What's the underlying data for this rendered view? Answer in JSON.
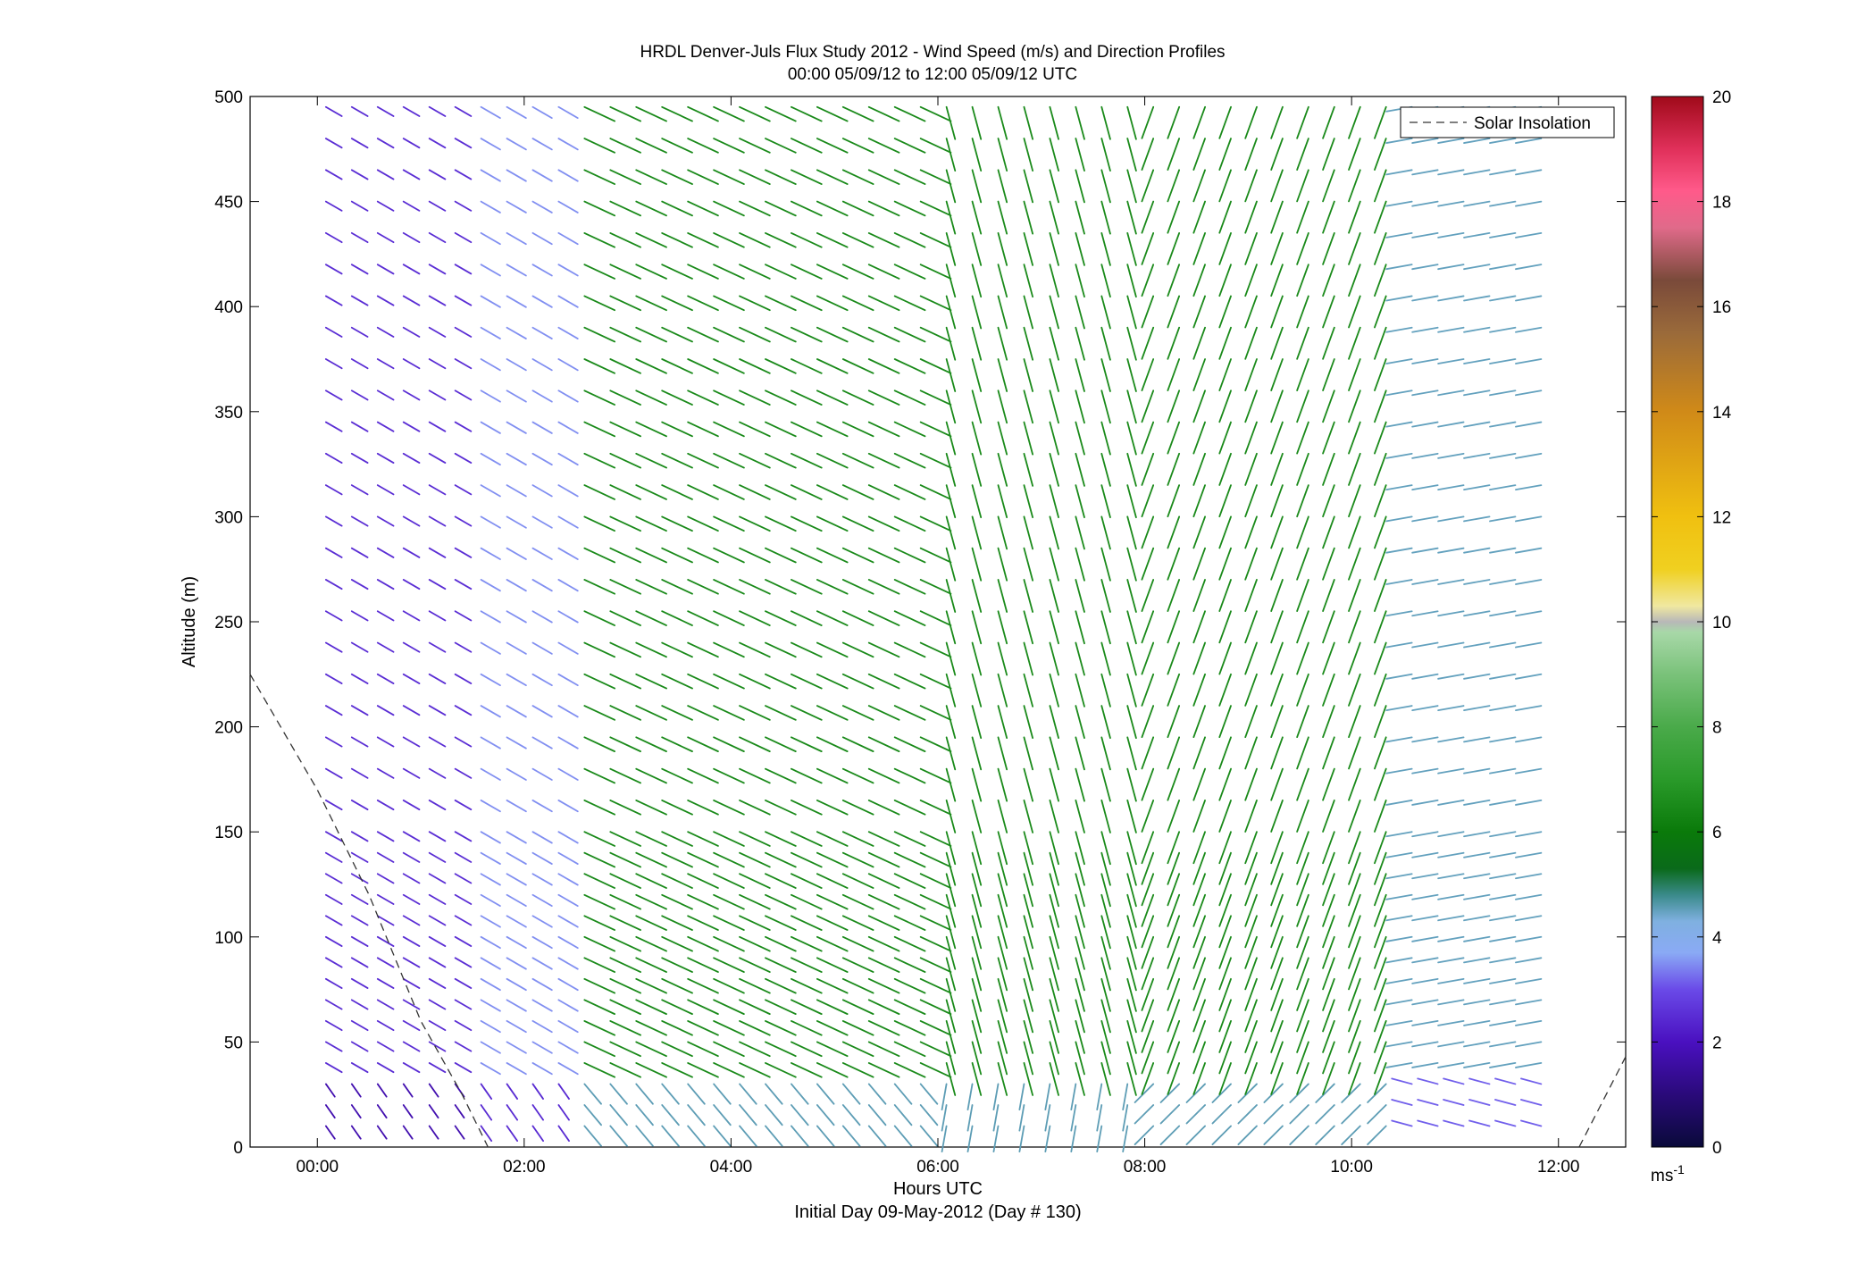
{
  "chart_data": {
    "type": "quiver",
    "title": "HRDL Denver-Juls Flux Study 2012 - Wind Speed (m/s) and Direction Profiles",
    "subtitle": "00:00 05/09/12 to 12:00 05/09/12  UTC",
    "xlabel": "Hours UTC",
    "xlabel2": "Initial Day 09-May-2012 (Day # 130)",
    "ylabel": "Altitude (m)",
    "xlim": [
      -0.65,
      12.65
    ],
    "ylim": [
      0,
      500
    ],
    "xticks": [
      0,
      2,
      4,
      6,
      8,
      10,
      12
    ],
    "xtick_labels": [
      "00:00",
      "02:00",
      "04:00",
      "06:00",
      "08:00",
      "10:00",
      "12:00"
    ],
    "yticks": [
      0,
      50,
      100,
      150,
      200,
      250,
      300,
      350,
      400,
      450,
      500
    ],
    "ytick_labels": [
      "0",
      "50",
      "100",
      "150",
      "200",
      "250",
      "300",
      "350",
      "400",
      "450",
      "500"
    ],
    "legend": {
      "entries": [
        "Solar Insolation"
      ],
      "placement": "top-right"
    },
    "colorbar": {
      "range": [
        0,
        20
      ],
      "ticks": [
        0,
        2,
        4,
        6,
        8,
        10,
        12,
        14,
        16,
        18,
        20
      ],
      "tick_labels": [
        "0",
        "2",
        "4",
        "6",
        "8",
        "10",
        "12",
        "14",
        "16",
        "18",
        "20"
      ],
      "unit_label": "ms",
      "unit_exp": "-1",
      "stops": [
        {
          "v": 0,
          "c": "#0a0a3a"
        },
        {
          "v": 1,
          "c": "#2a0a7a"
        },
        {
          "v": 2,
          "c": "#4a10c0"
        },
        {
          "v": 3,
          "c": "#6a4ae8"
        },
        {
          "v": 3.7,
          "c": "#8aaaf5"
        },
        {
          "v": 4.3,
          "c": "#7fb0e0"
        },
        {
          "v": 4.8,
          "c": "#3a8a8a"
        },
        {
          "v": 5.3,
          "c": "#0a6a1a"
        },
        {
          "v": 6,
          "c": "#0a7a0a"
        },
        {
          "v": 7,
          "c": "#2a9a2a"
        },
        {
          "v": 8,
          "c": "#4aaa4a"
        },
        {
          "v": 9,
          "c": "#7ac27a"
        },
        {
          "v": 9.8,
          "c": "#a8d8a8"
        },
        {
          "v": 10,
          "c": "#b8b8b8"
        },
        {
          "v": 10.3,
          "c": "#f0e8a0"
        },
        {
          "v": 11,
          "c": "#f0d020"
        },
        {
          "v": 12,
          "c": "#f0c010"
        },
        {
          "v": 14,
          "c": "#d08a18"
        },
        {
          "v": 15.5,
          "c": "#9a6a3a"
        },
        {
          "v": 16.5,
          "c": "#7a4a3a"
        },
        {
          "v": 17.5,
          "c": "#e06a8a"
        },
        {
          "v": 18.2,
          "c": "#ff5a8a"
        },
        {
          "v": 19,
          "c": "#e0305a"
        },
        {
          "v": 20,
          "c": "#a00a1a"
        }
      ]
    },
    "solar_insolation": [
      {
        "x": -0.65,
        "y": 225
      },
      {
        "x": 0.0,
        "y": 170
      },
      {
        "x": 0.5,
        "y": 120
      },
      {
        "x": 1.0,
        "y": 60
      },
      {
        "x": 1.4,
        "y": 25
      },
      {
        "x": 1.65,
        "y": 0
      },
      {
        "x": 12.2,
        "y": 0
      },
      {
        "x": 12.65,
        "y": 43
      }
    ],
    "heights": [
      10,
      20,
      30,
      40,
      50,
      60,
      70,
      80,
      90,
      100,
      110,
      120,
      130,
      140,
      150,
      165,
      180,
      195,
      210,
      225,
      240,
      255,
      270,
      285,
      300,
      315,
      330,
      345,
      360,
      375,
      390,
      405,
      420,
      435,
      450,
      465,
      480,
      495
    ],
    "wind_field": [
      {
        "t_end": 1.4,
        "speed": 2.5,
        "dir": 300,
        "label": "weak northwesterly"
      },
      {
        "t_end": 2.4,
        "speed": 3.5,
        "dir": 300,
        "label": "light northwesterly"
      },
      {
        "t_end": 6.0,
        "speed": 6.5,
        "dir": 295,
        "label": "moderate west-northwesterly"
      },
      {
        "t_end": 8.0,
        "speed": 6.5,
        "dir": 345,
        "label": "northerly"
      },
      {
        "t_end": 10.5,
        "speed": 6.5,
        "dir": 20,
        "label": "north-northeasterly"
      },
      {
        "t_end": 11.8,
        "speed": 4.5,
        "dir": 80,
        "label": "easterly"
      }
    ]
  }
}
